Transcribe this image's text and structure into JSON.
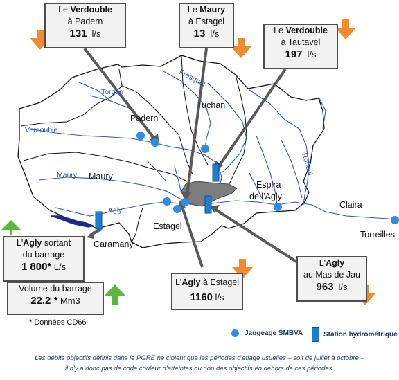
{
  "places": {
    "padern": "Padern",
    "tuchan": "Tuchan",
    "maury": "Maury",
    "espira": [
      "Espira",
      "de l'Agly"
    ],
    "claira": "Claira",
    "torreilles": "Torreilles",
    "estagel": "Estagel",
    "caramany": "Caramany"
  },
  "rivers": {
    "torgan": "Torgan",
    "verdouble": "Verdouble",
    "maury": "Maury",
    "agly": "Agly",
    "roboul": "Roboul",
    "fresquel": "Fresquel"
  },
  "boxes": {
    "verdouble_padern": {
      "l1a": "Le ",
      "l1b": "Verdouble",
      "l2": "à Padern",
      "value": "131",
      "unit": "l/s",
      "trend": "down"
    },
    "maury_estagel": {
      "l1a": "Le ",
      "l1b": "Maury",
      "l2": "à Estagel",
      "value": "13",
      "unit": "l/s",
      "trend": "down"
    },
    "verdouble_tautavel": {
      "l1a": "Le ",
      "l1b": "Verdouble",
      "l2": "à Tautavel",
      "value": "197",
      "unit": "l/s",
      "trend": "down"
    },
    "agly_barrage": {
      "l1a": "L'",
      "l1b": "Agly",
      "l1c": " sortant",
      "l2": "du barrage",
      "value": "1 800*",
      "unit": "L/s",
      "trend": "up"
    },
    "volume_barrage": {
      "l1": "Volume  du barrage",
      "value": "22.2 *",
      "unit": "Mm3",
      "trend": "up"
    },
    "agly_estagel": {
      "l1a": "L'",
      "l1b": "Agly",
      "l1c": " à Estagel",
      "value": "1160",
      "unit": "l/s",
      "trend": "down"
    },
    "agly_masdejau": {
      "l1a": "L'",
      "l1b": "Agly",
      "l2": "au Mas de Jau",
      "value": "963",
      "unit": "l/s",
      "trend": "down"
    }
  },
  "note": "* Données CD66",
  "legend": {
    "jaugeage": "Jaugeage SMBVA",
    "station": "Station hydrométrique"
  },
  "footer": {
    "line1": "Les débits objectifs définis dans le PGRE ne ciblent que les périodes d'étiage usuelles – soit de juillet à octobre –",
    "line2": "il n'y a donc pas de code couleur d'atteintes ou non des objectifs en dehors de ces périodes."
  },
  "colors": {
    "down_arrow": "#f28b30",
    "up_arrow": "#5cb83c",
    "river": "#2b55b8",
    "jaugeage": "#2e8ce3",
    "station": "#1c7fd6"
  }
}
